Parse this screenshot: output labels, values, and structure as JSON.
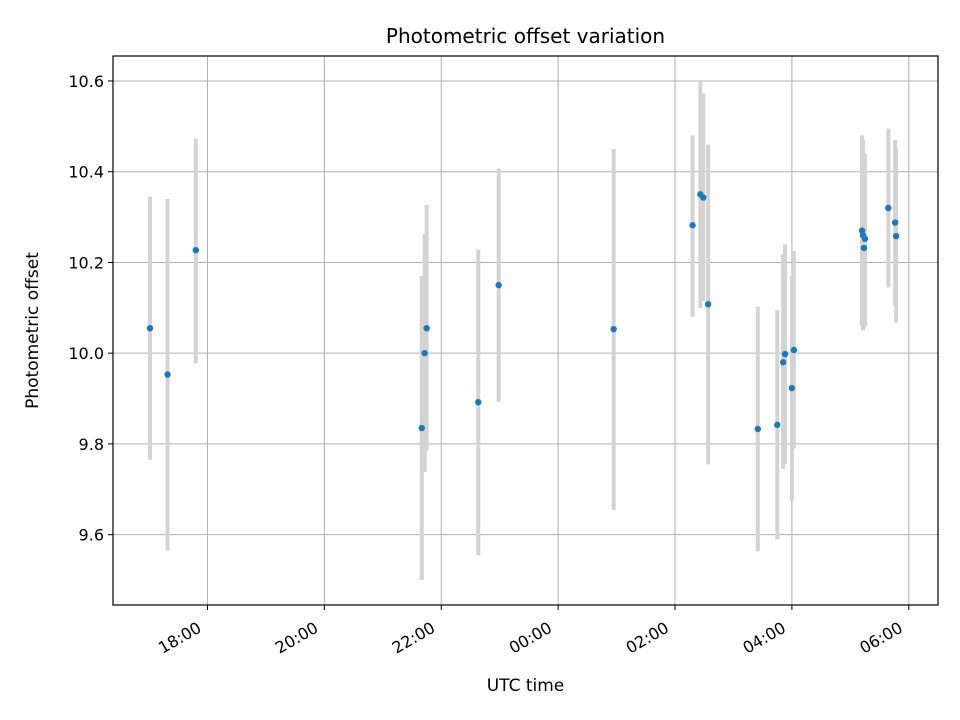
{
  "chart_data": {
    "type": "scatter",
    "title": "Photometric offset variation",
    "xlabel": "UTC time",
    "ylabel": "Photometric offset",
    "xlim": [
      "2024-01-01 16:23",
      "2024-01-02 06:30"
    ],
    "ylim": [
      9.445,
      10.655
    ],
    "x_ticks": [
      {
        "t": "2024-01-01 18:00",
        "label": "18:00"
      },
      {
        "t": "2024-01-01 20:00",
        "label": "20:00"
      },
      {
        "t": "2024-01-01 22:00",
        "label": "22:00"
      },
      {
        "t": "2024-01-02 00:00",
        "label": "00:00"
      },
      {
        "t": "2024-01-02 02:00",
        "label": "02:00"
      },
      {
        "t": "2024-01-02 04:00",
        "label": "04:00"
      },
      {
        "t": "2024-01-02 06:00",
        "label": "06:00"
      }
    ],
    "y_ticks": [
      {
        "v": 9.6,
        "label": "9.6"
      },
      {
        "v": 9.8,
        "label": "9.8"
      },
      {
        "v": 10.0,
        "label": "10.0"
      },
      {
        "v": 10.2,
        "label": "10.2"
      },
      {
        "v": 10.4,
        "label": "10.4"
      },
      {
        "v": 10.6,
        "label": "10.6"
      }
    ],
    "grid": true,
    "marker_color": "#1f77b4",
    "errorbar_color": "#d3d3d3",
    "series": [
      {
        "points": [
          {
            "t": "2024-01-01 17:01",
            "y": 10.055,
            "lo": 9.765,
            "hi": 10.345
          },
          {
            "t": "2024-01-01 17:19",
            "y": 9.953,
            "lo": 9.565,
            "hi": 10.34
          },
          {
            "t": "2024-01-01 17:48",
            "y": 10.227,
            "lo": 9.978,
            "hi": 10.473
          },
          {
            "t": "2024-01-01 21:40",
            "y": 9.835,
            "lo": 9.5,
            "hi": 10.17
          },
          {
            "t": "2024-01-01 21:43",
            "y": 10.0,
            "lo": 9.738,
            "hi": 10.262
          },
          {
            "t": "2024-01-01 21:45",
            "y": 10.055,
            "lo": 9.785,
            "hi": 10.327
          },
          {
            "t": "2024-01-01 22:38",
            "y": 9.892,
            "lo": 9.555,
            "hi": 10.228
          },
          {
            "t": "2024-01-01 22:59",
            "y": 10.15,
            "lo": 9.893,
            "hi": 10.407
          },
          {
            "t": "2024-01-02 00:57",
            "y": 10.053,
            "lo": 9.655,
            "hi": 10.45
          },
          {
            "t": "2024-01-02 02:18",
            "y": 10.282,
            "lo": 10.08,
            "hi": 10.48
          },
          {
            "t": "2024-01-02 02:26",
            "y": 10.35,
            "lo": 10.1,
            "hi": 10.6
          },
          {
            "t": "2024-01-02 02:29",
            "y": 10.343,
            "lo": 10.115,
            "hi": 10.572
          },
          {
            "t": "2024-01-02 02:34",
            "y": 10.108,
            "lo": 9.755,
            "hi": 10.46
          },
          {
            "t": "2024-01-02 03:25",
            "y": 9.833,
            "lo": 9.563,
            "hi": 10.103
          },
          {
            "t": "2024-01-02 03:45",
            "y": 9.842,
            "lo": 9.59,
            "hi": 10.095
          },
          {
            "t": "2024-01-02 03:51",
            "y": 9.98,
            "lo": 9.745,
            "hi": 10.218
          },
          {
            "t": "2024-01-02 03:53",
            "y": 9.998,
            "lo": 9.755,
            "hi": 10.24
          },
          {
            "t": "2024-01-02 04:00",
            "y": 9.923,
            "lo": 9.675,
            "hi": 10.17
          },
          {
            "t": "2024-01-02 04:02",
            "y": 10.007,
            "lo": 9.79,
            "hi": 10.225
          },
          {
            "t": "2024-01-02 05:12",
            "y": 10.27,
            "lo": 10.06,
            "hi": 10.48
          },
          {
            "t": "2024-01-02 05:13",
            "y": 10.26,
            "lo": 10.05,
            "hi": 10.47
          },
          {
            "t": "2024-01-02 05:14",
            "y": 10.232,
            "lo": 10.055,
            "hi": 10.418
          },
          {
            "t": "2024-01-02 05:15",
            "y": 10.252,
            "lo": 10.06,
            "hi": 10.44
          },
          {
            "t": "2024-01-02 05:39",
            "y": 10.32,
            "lo": 10.145,
            "hi": 10.495
          },
          {
            "t": "2024-01-02 05:46",
            "y": 10.288,
            "lo": 10.105,
            "hi": 10.47
          },
          {
            "t": "2024-01-02 05:47",
            "y": 10.258,
            "lo": 10.068,
            "hi": 10.45
          }
        ]
      }
    ]
  }
}
